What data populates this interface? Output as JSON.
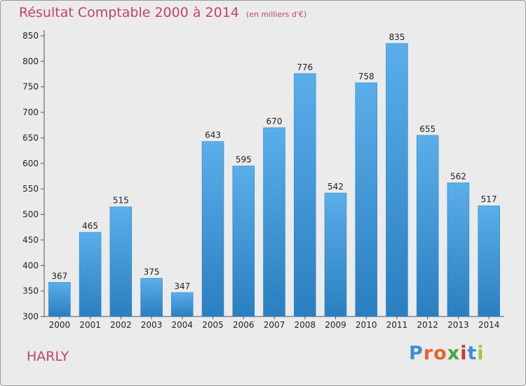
{
  "chart_data": {
    "type": "bar",
    "title": "Résultat Comptable 2000 à 2014",
    "subtitle": "(en milliers d'€)",
    "categories": [
      "2000",
      "2001",
      "2002",
      "2003",
      "2004",
      "2005",
      "2006",
      "2007",
      "2008",
      "2009",
      "2010",
      "2011",
      "2012",
      "2013",
      "2014"
    ],
    "values": [
      367,
      465,
      515,
      375,
      347,
      643,
      595,
      670,
      776,
      542,
      758,
      835,
      655,
      562,
      517
    ],
    "ylim": [
      300,
      850
    ],
    "yticks": [
      300,
      350,
      400,
      450,
      500,
      550,
      600,
      650,
      700,
      750,
      800,
      850
    ],
    "xlabel": "",
    "ylabel": "",
    "grid": false,
    "bar_color": "#3f97d8",
    "bar_color_light": "#5aaeea",
    "bar_color_dark": "#2a7fc0"
  },
  "location": "HARLY",
  "logo": {
    "text": "Proxiti",
    "letter_colors": [
      "#3d8ed8",
      "#e8622c",
      "#e8622c",
      "#49a83c",
      "#d8322c",
      "#3d8ed8",
      "#9ccc2c"
    ]
  }
}
